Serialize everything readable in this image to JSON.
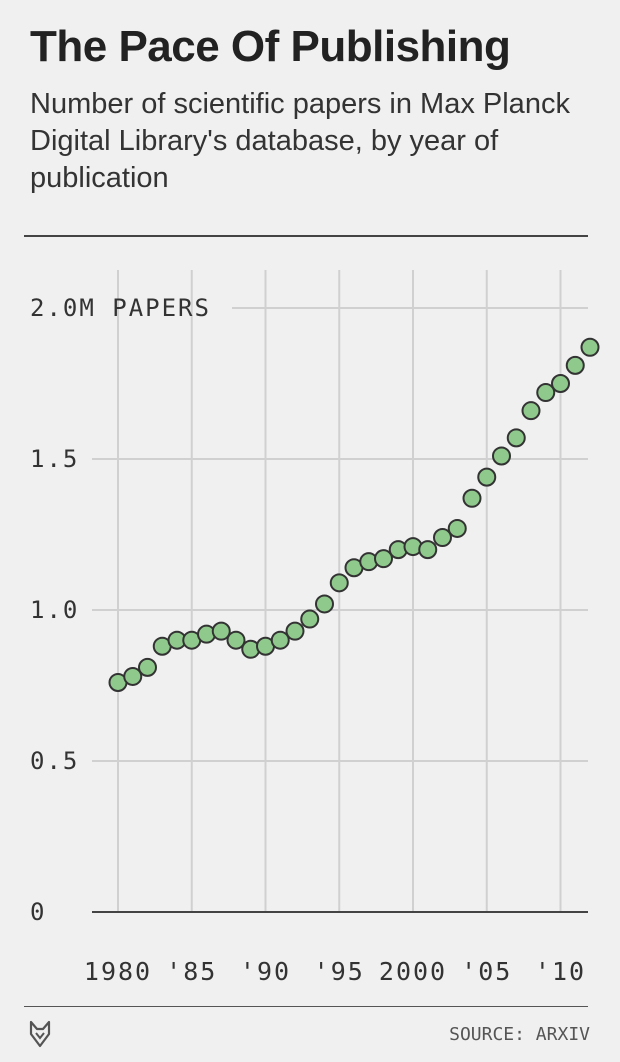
{
  "header": {
    "title": "The Pace Of Publishing",
    "subtitle": "Number of scientific papers in Max Planck Digital Library's database, by year of publication"
  },
  "footer": {
    "source": "SOURCE: ARXIV",
    "logo_icon": "fox-head-icon"
  },
  "colors": {
    "marker_fill": "#8fc98c",
    "marker_stroke": "#333333",
    "grid": "#d0d0d0",
    "baseline": "#444444"
  },
  "chart_data": {
    "type": "scatter",
    "title": "The Pace Of Publishing",
    "ylabel": "",
    "xlabel": "",
    "x_range": [
      1980,
      2012
    ],
    "ylim": [
      0,
      2.0
    ],
    "y_ticks": [
      {
        "value": 0,
        "label": "0"
      },
      {
        "value": 0.5,
        "label": "0.5"
      },
      {
        "value": 1.0,
        "label": "1.0"
      },
      {
        "value": 1.5,
        "label": "1.5"
      },
      {
        "value": 2.0,
        "label": "2.0M PAPERS"
      }
    ],
    "x_ticks": [
      {
        "value": 1980,
        "label": "1980"
      },
      {
        "value": 1985,
        "label": "'85"
      },
      {
        "value": 1990,
        "label": "'90"
      },
      {
        "value": 1995,
        "label": "'95"
      },
      {
        "value": 2000,
        "label": "2000"
      },
      {
        "value": 2005,
        "label": "'05"
      },
      {
        "value": 2010,
        "label": "'10"
      }
    ],
    "grid": true,
    "legend": "none",
    "series": [
      {
        "x": [
          1980,
          1981,
          1982,
          1983,
          1984,
          1985,
          1986,
          1987,
          1988,
          1989,
          1990,
          1991,
          1992,
          1993,
          1994,
          1995,
          1996,
          1997,
          1998,
          1999,
          2000,
          2001,
          2002,
          2003,
          2004,
          2005,
          2006,
          2007,
          2008,
          2009,
          2010,
          2011,
          2012
        ],
        "values": [
          0.76,
          0.78,
          0.81,
          0.88,
          0.9,
          0.9,
          0.92,
          0.93,
          0.9,
          0.87,
          0.88,
          0.9,
          0.93,
          0.97,
          1.02,
          1.09,
          1.14,
          1.16,
          1.17,
          1.2,
          1.21,
          1.2,
          1.24,
          1.27,
          1.37,
          1.44,
          1.51,
          1.57,
          1.66,
          1.72,
          1.75,
          1.81,
          1.87
        ]
      }
    ]
  }
}
